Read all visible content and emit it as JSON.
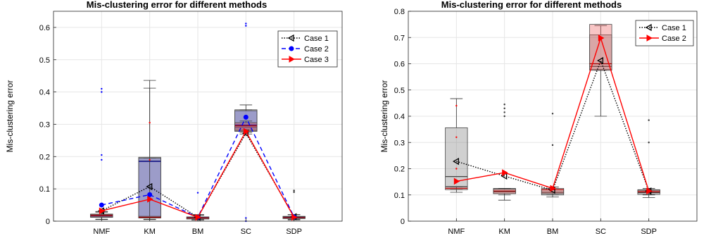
{
  "chart_data": [
    {
      "type": "box",
      "title": "Mis-clustering error for different methods",
      "ylabel": "Mis-clustering error",
      "xlabel": "",
      "categories": [
        "NMF",
        "KM",
        "BM",
        "SC",
        "SDP"
      ],
      "ylim": [
        0,
        0.65
      ],
      "yticks": [
        0,
        0.1,
        0.2,
        0.3,
        0.4,
        0.5,
        0.6
      ],
      "ytick_labels": [
        "0",
        "0.1",
        "0.2",
        "0.3",
        "0.4",
        "0.5",
        "0.6"
      ],
      "grid": true,
      "legend": "top-right",
      "series": [
        {
          "name": "Case 1",
          "color": "#000000",
          "dash": "dotted",
          "marker": "triangle-left",
          "mean": [
            0.032,
            0.107,
            0.012,
            0.272,
            0.014
          ],
          "boxes": [
            {
              "q1": 0.012,
              "median": 0.016,
              "q3": 0.022,
              "wlo": 0.005,
              "whi": 0.03,
              "outliers": []
            },
            {
              "q1": 0.01,
              "median": 0.186,
              "q3": 0.198,
              "wlo": 0.005,
              "whi": 0.436,
              "outliers": []
            },
            {
              "q1": 0.007,
              "median": 0.01,
              "q3": 0.013,
              "wlo": 0.004,
              "whi": 0.018,
              "outliers": []
            },
            {
              "q1": 0.278,
              "median": 0.29,
              "q3": 0.345,
              "wlo": 0.27,
              "whi": 0.345,
              "outliers": []
            },
            {
              "q1": 0.008,
              "median": 0.011,
              "q3": 0.015,
              "wlo": 0.004,
              "whi": 0.02,
              "outliers": [
                0.09,
                0.095
              ]
            }
          ]
        },
        {
          "name": "Case 2",
          "color": "#0000ff",
          "dash": "dashed",
          "marker": "dot",
          "mean": [
            0.05,
            0.082,
            0.012,
            0.322,
            0.013
          ],
          "boxes": [
            {
              "q1": 0.012,
              "median": 0.017,
              "q3": 0.02,
              "wlo": 0.006,
              "whi": 0.028,
              "outliers": [
                0.19,
                0.205,
                0.4,
                0.41
              ]
            },
            {
              "q1": 0.012,
              "median": 0.185,
              "q3": 0.195,
              "wlo": 0.006,
              "whi": 0.195,
              "outliers": []
            },
            {
              "q1": 0.007,
              "median": 0.011,
              "q3": 0.013,
              "wlo": 0.004,
              "whi": 0.02,
              "outliers": [
                0.088
              ]
            },
            {
              "q1": 0.284,
              "median": 0.298,
              "q3": 0.342,
              "wlo": 0.284,
              "whi": 0.36,
              "outliers": [
                0.605,
                0.612,
                0.0,
                0.01
              ]
            },
            {
              "q1": 0.009,
              "median": 0.012,
              "q3": 0.014,
              "wlo": 0.005,
              "whi": 0.02,
              "outliers": []
            }
          ]
        },
        {
          "name": "Case 3",
          "color": "#ff0000",
          "dash": "solid",
          "marker": "triangle-right",
          "mean": [
            0.032,
            0.068,
            0.012,
            0.278,
            0.012
          ],
          "boxes": [
            {
              "q1": 0.013,
              "median": 0.018,
              "q3": 0.022,
              "wlo": 0.006,
              "whi": 0.03,
              "outliers": []
            },
            {
              "q1": 0.01,
              "median": 0.012,
              "q3": 0.015,
              "wlo": 0.005,
              "whi": 0.412,
              "outliers": [
                0.19,
                0.305
              ]
            },
            {
              "q1": 0.007,
              "median": 0.01,
              "q3": 0.013,
              "wlo": 0.004,
              "whi": 0.02,
              "outliers": []
            },
            {
              "q1": 0.28,
              "median": 0.295,
              "q3": 0.305,
              "wlo": 0.275,
              "whi": 0.31,
              "outliers": []
            },
            {
              "q1": 0.009,
              "median": 0.011,
              "q3": 0.014,
              "wlo": 0.005,
              "whi": 0.02,
              "outliers": []
            }
          ]
        }
      ]
    },
    {
      "type": "box",
      "title": "Mis-clustering error for different methods",
      "ylabel": "Mis-clustering error",
      "xlabel": "",
      "categories": [
        "NMF",
        "KM",
        "BM",
        "SC",
        "SDP"
      ],
      "ylim": [
        0,
        0.8
      ],
      "yticks": [
        0,
        0.1,
        0.2,
        0.3,
        0.4,
        0.5,
        0.6,
        0.7,
        0.8
      ],
      "ytick_labels": [
        "0",
        "0.1",
        "0.2",
        "0.3",
        "0.4",
        "0.5",
        "0.6",
        "0.7",
        "0.8"
      ],
      "grid": true,
      "legend": "top-right",
      "series": [
        {
          "name": "Case 1",
          "color": "#000000",
          "dash": "dotted",
          "marker": "triangle-left",
          "mean": [
            0.228,
            0.172,
            0.118,
            0.612,
            0.115
          ],
          "boxes": [
            {
              "q1": 0.132,
              "median": 0.17,
              "q3": 0.356,
              "wlo": 0.11,
              "whi": 0.467,
              "outliers": []
            },
            {
              "q1": 0.105,
              "median": 0.112,
              "q3": 0.125,
              "wlo": 0.08,
              "whi": 0.125,
              "outliers": [
                0.4,
                0.415,
                0.43,
                0.445
              ]
            },
            {
              "q1": 0.1,
              "median": 0.11,
              "q3": 0.12,
              "wlo": 0.092,
              "whi": 0.125,
              "outliers": [
                0.29,
                0.41
              ]
            },
            {
              "q1": 0.578,
              "median": 0.59,
              "q3": 0.71,
              "wlo": 0.4,
              "whi": 0.745,
              "outliers": []
            },
            {
              "q1": 0.102,
              "median": 0.11,
              "q3": 0.12,
              "wlo": 0.09,
              "whi": 0.125,
              "outliers": [
                0.3,
                0.385
              ]
            }
          ]
        },
        {
          "name": "Case 2",
          "color": "#ff0000",
          "dash": "solid",
          "marker": "triangle-right",
          "mean": [
            0.152,
            0.185,
            0.125,
            0.698,
            0.115
          ],
          "boxes": [
            {
              "q1": 0.12,
              "median": 0.125,
              "q3": 0.13,
              "wlo": 0.12,
              "whi": 0.13,
              "outliers": [
                0.2,
                0.32,
                0.44
              ]
            },
            {
              "q1": 0.105,
              "median": 0.115,
              "q3": 0.122,
              "wlo": 0.1,
              "whi": 0.125,
              "outliers": []
            },
            {
              "q1": 0.105,
              "median": 0.12,
              "q3": 0.125,
              "wlo": 0.1,
              "whi": 0.13,
              "outliers": []
            },
            {
              "q1": 0.575,
              "median": 0.6,
              "q3": 0.75,
              "wlo": 0.575,
              "whi": 0.75,
              "outliers": []
            },
            {
              "q1": 0.108,
              "median": 0.112,
              "q3": 0.118,
              "wlo": 0.1,
              "whi": 0.12,
              "outliers": []
            }
          ]
        }
      ]
    }
  ]
}
